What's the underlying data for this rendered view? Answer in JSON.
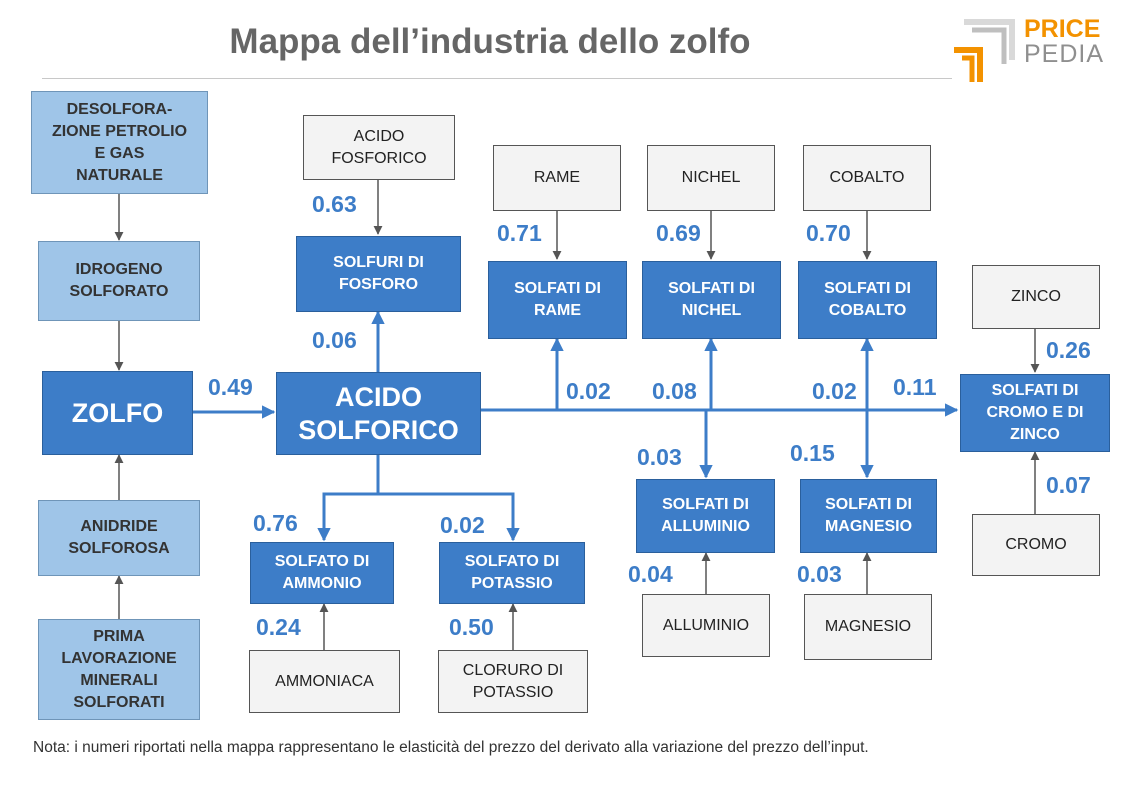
{
  "title": "Mappa dell’industria dello zolfo",
  "logo": {
    "line1": "PRICE",
    "line2": "PEDIA"
  },
  "colors": {
    "product": "#3d7dc8",
    "source": "#9fc5e8",
    "input": "#f3f3f3",
    "number": "#3d7dc8",
    "logo_orange": "#f39200"
  },
  "nodes": {
    "desolforazione": "DESOLFORA-\nZIONE PETROLIO\nE GAS\nNATURALE",
    "idrogeno": "IDROGENO\nSOLFORATO",
    "zolfo": "ZOLFO",
    "anidride": "ANIDRIDE\nSOLFOROSA",
    "prima_lavorazione": "PRIMA\nLAVORAZIONE\nMINERALI\nSOLFORATI",
    "acido_fosforico": "ACIDO\nFOSFORICO",
    "solfuri_fosforo": "SOLFURI DI\nFOSFORO",
    "acido_solforico": "ACIDO\nSOLFORICO",
    "solfato_ammonio": "SOLFATO DI\nAMMONIO",
    "ammoniaca": "AMMONIACA",
    "solfato_potassio": "SOLFATO DI\nPOTASSIO",
    "cloruro_potassio": "CLORURO DI\nPOTASSIO",
    "rame": "RAME",
    "solfati_rame": "SOLFATI DI\nRAME",
    "nichel": "NICHEL",
    "solfati_nichel": "SOLFATI DI\nNICHEL",
    "cobalto": "COBALTO",
    "solfati_cobalto": "SOLFATI DI\nCOBALTO",
    "solfati_alluminio": "SOLFATI DI\nALLUMINIO",
    "alluminio": "ALLUMINIO",
    "solfati_magnesio": "SOLFATI DI\nMAGNESIO",
    "magnesio": "MAGNESIO",
    "zinco": "ZINCO",
    "solfati_cromo_zinco": "SOLFATI DI\nCROMO E DI\nZINCO",
    "cromo": "CROMO"
  },
  "values": {
    "zolfo_to_acido": "0.49",
    "acido_fosforico_to_solfuri": "0.63",
    "acido_to_solfuri": "0.06",
    "rame_to_solfati": "0.71",
    "nichel_to_solfati": "0.69",
    "cobalto_to_solfati": "0.70",
    "acido_to_rame": "0.02",
    "acido_to_nichel": "0.08",
    "acido_to_cobalto": "0.02",
    "acido_to_cromo_zinco": "0.11",
    "zinco_to_solfati": "0.26",
    "cromo_to_solfati": "0.07",
    "acido_to_alluminio": "0.03",
    "acido_to_magnesio": "0.15",
    "alluminio_to_solfati": "0.04",
    "magnesio_to_solfati": "0.03",
    "acido_to_ammonio": "0.76",
    "acido_to_potassio": "0.02",
    "ammoniaca_to_solfato": "0.24",
    "cloruro_to_solfato": "0.50"
  },
  "note": "Nota: i numeri riportati nella mappa rappresentano le elasticità del prezzo del derivato alla variazione del prezzo dell’input."
}
